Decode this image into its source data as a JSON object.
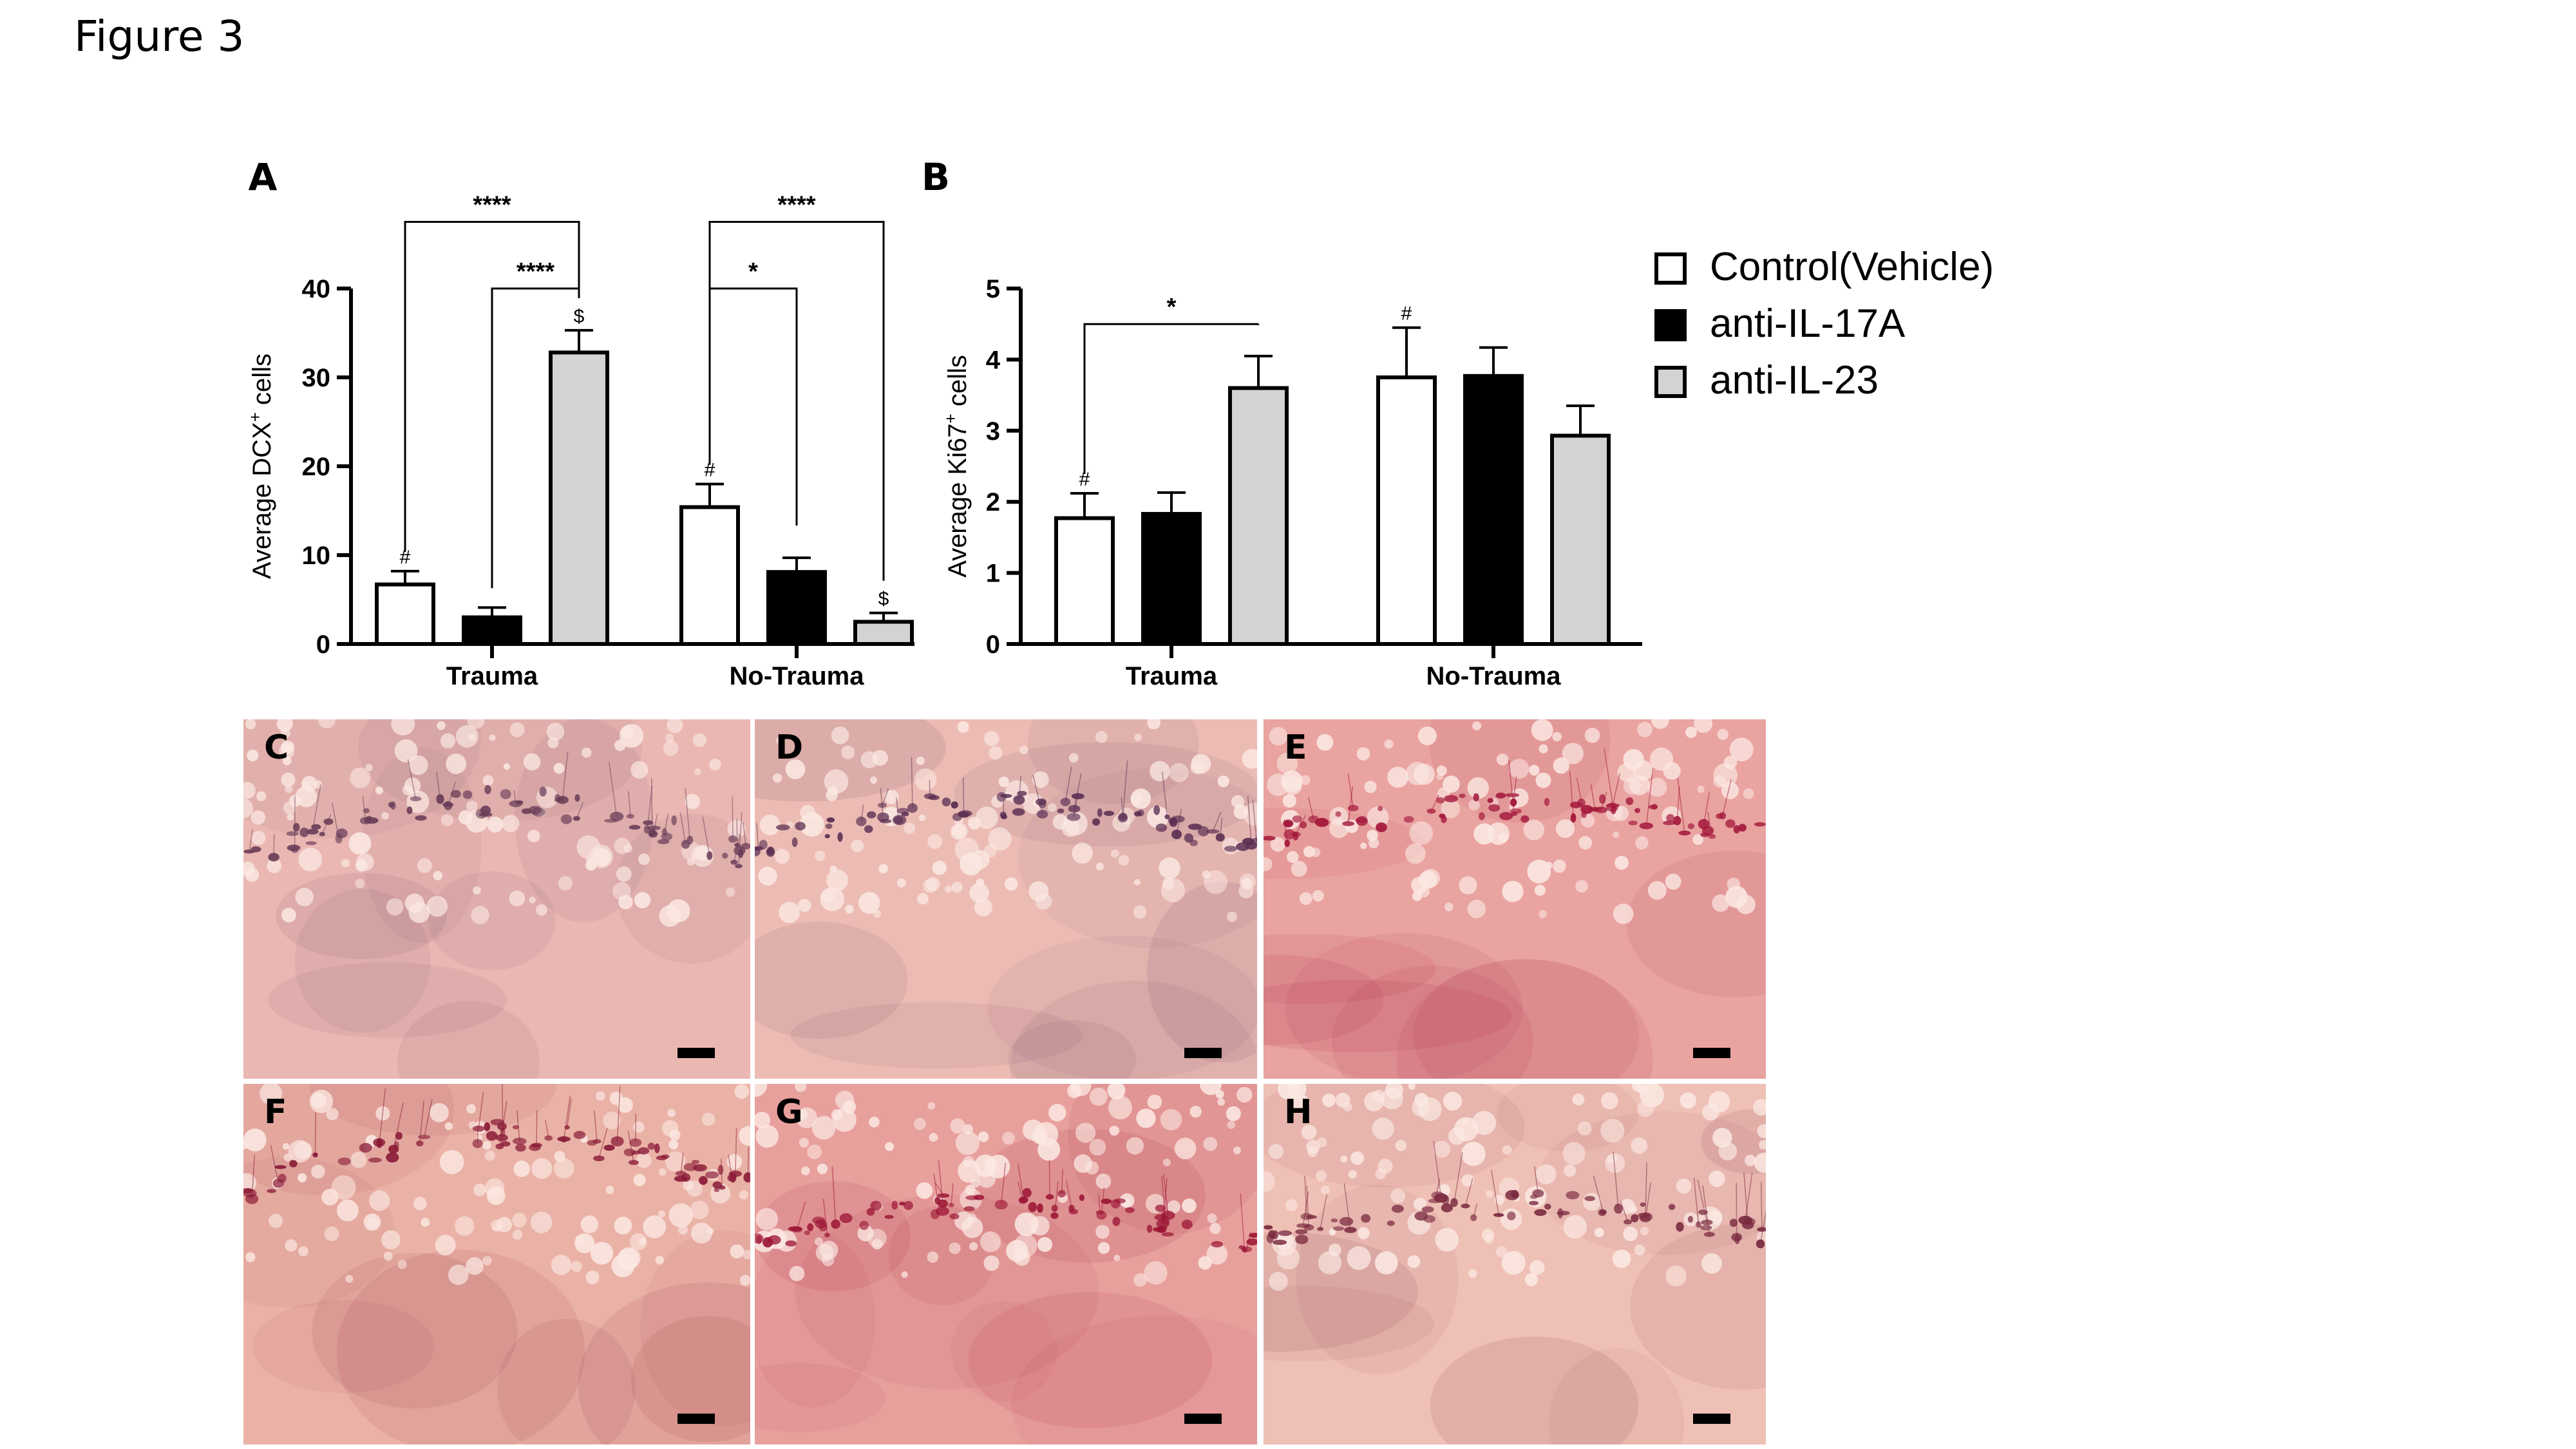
{
  "figure_title": "Figure 3",
  "legend": [
    {
      "label": "Control(Vehicle)",
      "fill": "#ffffff"
    },
    {
      "label": "anti-IL-17A",
      "fill": "#000000"
    },
    {
      "label": "anti-IL-23",
      "fill": "#d3d3d3"
    }
  ],
  "chart_data": [
    {
      "type": "bar",
      "panel": "A",
      "ylabel": "Average DCX+ cells",
      "ylim": [
        0,
        40
      ],
      "yticks": [
        0,
        10,
        20,
        30,
        40
      ],
      "categories": [
        "Trauma",
        "No-Trauma"
      ],
      "series": [
        {
          "name": "Control(Vehicle)",
          "values": [
            6.7,
            15.4
          ],
          "errors": [
            1.5,
            2.6
          ]
        },
        {
          "name": "anti-IL-17A",
          "values": [
            3.0,
            8.1
          ],
          "errors": [
            1.1,
            1.6
          ]
        },
        {
          "name": "anti-IL-23",
          "values": [
            32.8,
            2.5
          ],
          "errors": [
            2.5,
            1.0
          ]
        }
      ],
      "bar_marks": [
        {
          "category": 0,
          "series": 0,
          "text": "#"
        },
        {
          "category": 0,
          "series": 2,
          "text": "$"
        },
        {
          "category": 1,
          "series": 0,
          "text": "#"
        },
        {
          "category": 1,
          "series": 2,
          "text": "$"
        }
      ],
      "brackets": [
        {
          "from": [
            0,
            0
          ],
          "to": [
            0,
            2
          ],
          "y": 47.5,
          "text": "****"
        },
        {
          "from": [
            0,
            1
          ],
          "to": [
            0,
            2
          ],
          "y": 40.0,
          "text": "****"
        },
        {
          "from": [
            1,
            0
          ],
          "to": [
            1,
            2
          ],
          "y": 47.5,
          "text": "****"
        },
        {
          "from": [
            1,
            0
          ],
          "to": [
            1,
            1
          ],
          "y": 40.0,
          "text": "*"
        }
      ]
    },
    {
      "type": "bar",
      "panel": "B",
      "ylabel": "Average Ki67+ cells",
      "ylim": [
        0,
        5
      ],
      "yticks": [
        0,
        1,
        2,
        3,
        4,
        5
      ],
      "categories": [
        "Trauma",
        "No-Trauma"
      ],
      "series": [
        {
          "name": "Control(Vehicle)",
          "values": [
            1.77,
            3.75
          ],
          "errors": [
            0.35,
            0.7
          ]
        },
        {
          "name": "anti-IL-17A",
          "values": [
            1.83,
            3.77
          ],
          "errors": [
            0.3,
            0.4
          ]
        },
        {
          "name": "anti-IL-23",
          "values": [
            3.6,
            2.93
          ],
          "errors": [
            0.45,
            0.42
          ]
        }
      ],
      "bar_marks": [
        {
          "category": 0,
          "series": 0,
          "text": "#"
        },
        {
          "category": 1,
          "series": 0,
          "text": "#"
        }
      ],
      "brackets": [
        {
          "from": [
            0,
            0
          ],
          "to": [
            0,
            2
          ],
          "y": 4.5,
          "text": "*"
        }
      ]
    }
  ],
  "panels": [
    {
      "label": "C",
      "color": "#eab7b2",
      "stain": "#6a3d58"
    },
    {
      "label": "D",
      "color": "#ecbcb4",
      "stain": "#5a2e52"
    },
    {
      "label": "E",
      "color": "#e9a3a0",
      "stain": "#a2153a"
    },
    {
      "label": "F",
      "color": "#eab2a6",
      "stain": "#8a1c38"
    },
    {
      "label": "G",
      "color": "#e8a09d",
      "stain": "#9c1736"
    },
    {
      "label": "H",
      "color": "#efc0b5",
      "stain": "#7a2a40"
    }
  ]
}
